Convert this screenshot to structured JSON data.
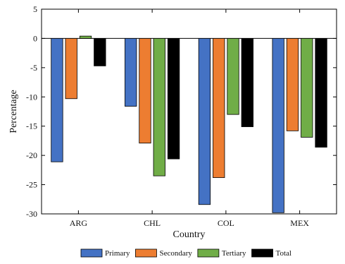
{
  "chart_data": {
    "type": "bar",
    "title": "",
    "xlabel": "Country",
    "ylabel": "Percentage",
    "categories": [
      "ARG",
      "CHL",
      "COL",
      "MEX"
    ],
    "ylim": [
      -30,
      5
    ],
    "yticks": [
      5,
      0,
      -5,
      -10,
      -15,
      -20,
      -25,
      -30
    ],
    "grid": false,
    "legend_position": "bottom",
    "series": [
      {
        "name": "Primary",
        "color": "#4472C4",
        "values": [
          -21.1,
          -11.6,
          -28.4,
          -29.8
        ]
      },
      {
        "name": "Secondary",
        "color": "#ED7D31",
        "values": [
          -10.3,
          -17.9,
          -23.8,
          -15.8
        ]
      },
      {
        "name": "Tertiary",
        "color": "#70AD47",
        "values": [
          0.4,
          -23.5,
          -13.0,
          -16.9
        ]
      },
      {
        "name": "Total",
        "color": "#000000",
        "values": [
          -4.7,
          -20.6,
          -15.1,
          -18.6
        ]
      }
    ]
  }
}
